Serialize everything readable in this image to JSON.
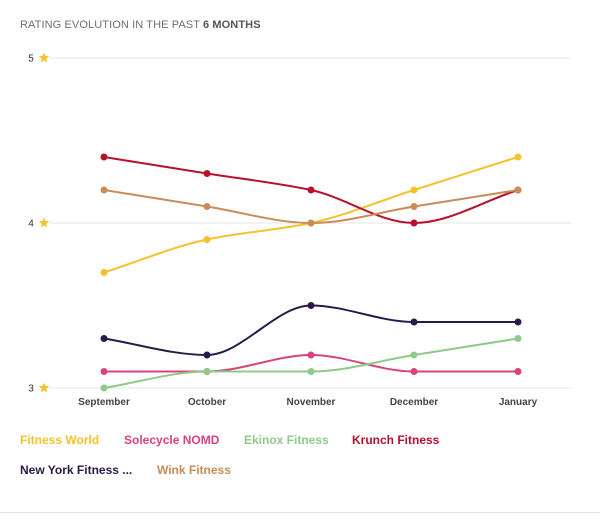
{
  "header": {
    "title_prefix": "RATING EVOLUTION IN THE PAST ",
    "title_emphasis": "6 MONTHS"
  },
  "chart_data": {
    "type": "line",
    "title": "RATING EVOLUTION IN THE PAST 6 MONTHS",
    "categories": [
      "September",
      "October",
      "November",
      "December",
      "January"
    ],
    "ylim": [
      3,
      5
    ],
    "yticks": [
      "3",
      "4",
      "5"
    ],
    "grid": true,
    "legend_position": "bottom",
    "series": [
      {
        "name": "Fitness World",
        "color": "#f5c12e",
        "values": [
          3.7,
          3.9,
          4.0,
          4.2,
          4.4
        ]
      },
      {
        "name": "Solecycle NOMD",
        "color": "#d9437c",
        "values": [
          3.1,
          3.1,
          3.2,
          3.1,
          3.1
        ]
      },
      {
        "name": "Ekinox Fitness",
        "color": "#8fcb88",
        "values": [
          3.0,
          3.1,
          3.1,
          3.2,
          3.3
        ]
      },
      {
        "name": "Krunch Fitness",
        "color": "#b8112e",
        "values": [
          4.4,
          4.3,
          4.2,
          4.0,
          4.2
        ]
      },
      {
        "name": "New York Fitness ...",
        "color": "#2a1a4a",
        "values": [
          3.3,
          3.2,
          3.5,
          3.4,
          3.4
        ]
      },
      {
        "name": "Wink Fitness",
        "color": "#c98c5a",
        "values": [
          4.2,
          4.1,
          4.0,
          4.1,
          4.2
        ]
      }
    ]
  }
}
